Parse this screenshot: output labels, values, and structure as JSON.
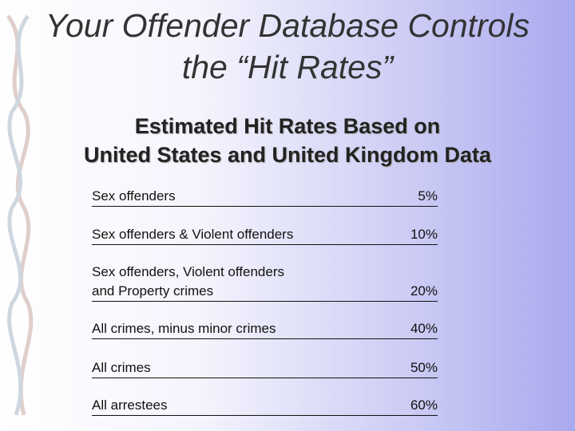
{
  "header": {
    "title": [
      "Your Offender Database Controls",
      "the “Hit Rates”"
    ],
    "subtitle": [
      "Estimated Hit Rates Based on",
      "United States and United Kingdom Data"
    ]
  },
  "table": {
    "rows": [
      {
        "label": [
          "Sex offenders"
        ],
        "value": "5%"
      },
      {
        "label": [
          "Sex offenders & Violent offenders"
        ],
        "value": "10%"
      },
      {
        "label": [
          "Sex offenders, Violent offenders",
          "and Property crimes"
        ],
        "value": "20%"
      },
      {
        "label": [
          "All crimes, minus minor crimes"
        ],
        "value": "40%"
      },
      {
        "label": [
          "All crimes"
        ],
        "value": "50%"
      },
      {
        "label": [
          "All arrestees"
        ],
        "value": "60%"
      }
    ]
  }
}
